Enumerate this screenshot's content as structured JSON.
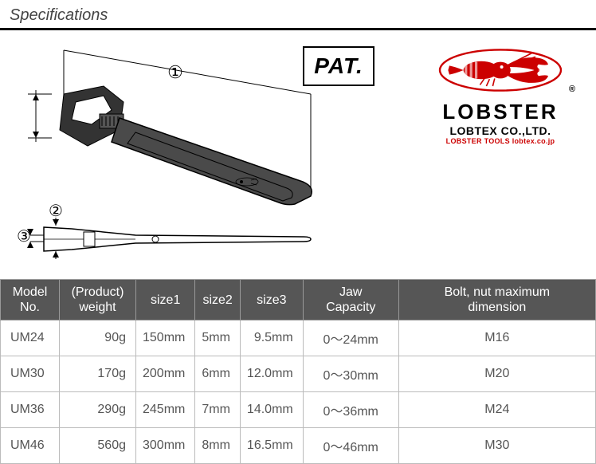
{
  "header": {
    "title": "Specifications"
  },
  "diagram": {
    "pat_label": "PAT.",
    "dim_labels": [
      "①",
      "②",
      "③"
    ],
    "colors": {
      "outline": "#000000",
      "fill": "#333333",
      "handle_fill": "#4a4a4a"
    }
  },
  "logo": {
    "brand": "LOBSTER",
    "company": "LOBTEX CO.,LTD.",
    "tagline": "LOBSTER TOOLS lobtex.co.jp",
    "reg": "®",
    "colors": {
      "red": "#cc0000",
      "black": "#000000"
    }
  },
  "table": {
    "header_bg": "#565656",
    "header_fg": "#ffffff",
    "border": "#bbbbbb",
    "cell_fg": "#555555",
    "columns": [
      {
        "label": "Model\nNo.",
        "align": "left",
        "key": "model"
      },
      {
        "label": "(Product)\nweight",
        "align": "right",
        "key": "weight"
      },
      {
        "label": "size1",
        "align": "right",
        "key": "size1"
      },
      {
        "label": "size2",
        "align": "right",
        "key": "size2"
      },
      {
        "label": "size3",
        "align": "right",
        "key": "size3"
      },
      {
        "label": "Jaw\nCapacity",
        "align": "center",
        "key": "jaw"
      },
      {
        "label": "Bolt, nut maximum\ndimension",
        "align": "center",
        "key": "bolt"
      }
    ],
    "rows": [
      {
        "model": "UM24",
        "weight": "90g",
        "size1": "150mm",
        "size2": "5mm",
        "size3": "9.5mm",
        "jaw": "0～24mm",
        "bolt": "M16"
      },
      {
        "model": "UM30",
        "weight": "170g",
        "size1": "200mm",
        "size2": "6mm",
        "size3": "12.0mm",
        "jaw": "0～30mm",
        "bolt": "M20"
      },
      {
        "model": "UM36",
        "weight": "290g",
        "size1": "245mm",
        "size2": "7mm",
        "size3": "14.0mm",
        "jaw": "0～36mm",
        "bolt": "M24"
      },
      {
        "model": "UM46",
        "weight": "560g",
        "size1": "300mm",
        "size2": "8mm",
        "size3": "16.5mm",
        "jaw": "0～46mm",
        "bolt": "M30"
      }
    ]
  }
}
